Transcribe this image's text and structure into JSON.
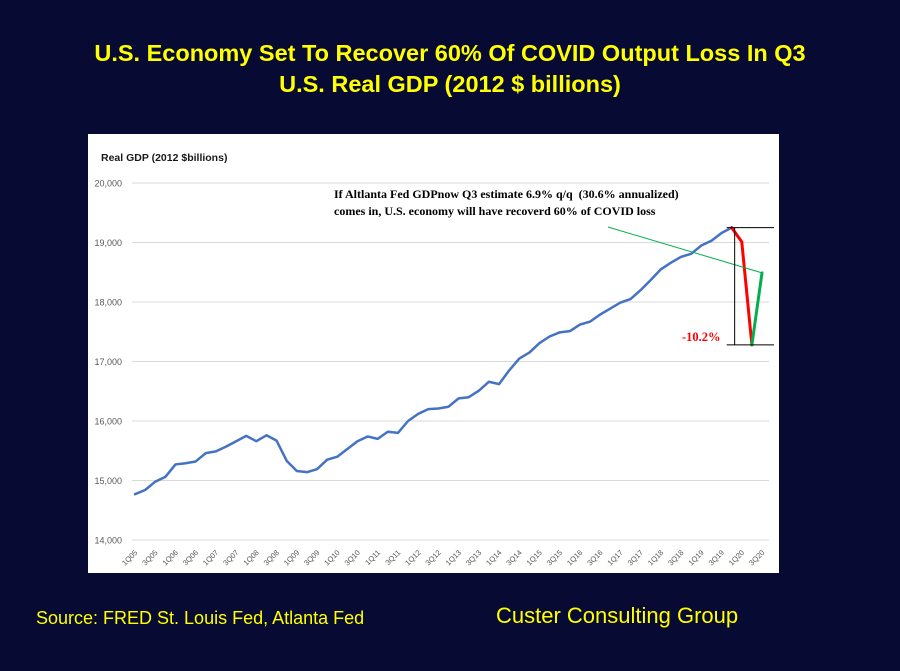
{
  "slide": {
    "title_line1": "U.S. Economy Set To Recover 60% Of COVID Output Loss In Q3",
    "title_line2": "U.S. Real GDP (2012 $ billions)",
    "source": "Source: FRED St. Louis Fed, Atlanta Fed",
    "brand": "Custer Consulting Group"
  },
  "chart_data": {
    "type": "line",
    "title": "Real GDP (2012 $billions)",
    "ylim": [
      14000,
      20000
    ],
    "yticks": [
      14000,
      15000,
      16000,
      17000,
      18000,
      19000,
      20000
    ],
    "ytick_labels": [
      "14,000",
      "15,000",
      "16,000",
      "17,000",
      "18,000",
      "19,000",
      "20,000"
    ],
    "xtick_labels": [
      "1Q05",
      "3Q05",
      "1Q06",
      "3Q06",
      "1Q07",
      "3Q07",
      "1Q08",
      "3Q08",
      "1Q09",
      "3Q09",
      "1Q10",
      "3Q10",
      "1Q11",
      "3Q11",
      "1Q12",
      "3Q12",
      "1Q13",
      "3Q13",
      "1Q14",
      "3Q14",
      "1Q15",
      "3Q15",
      "1Q16",
      "3Q16",
      "1Q17",
      "3Q17",
      "1Q18",
      "3Q18",
      "1Q19",
      "3Q19",
      "1Q20",
      "3Q20"
    ],
    "grid": true,
    "x": [
      "1Q05",
      "2Q05",
      "3Q05",
      "4Q05",
      "1Q06",
      "2Q06",
      "3Q06",
      "4Q06",
      "1Q07",
      "2Q07",
      "3Q07",
      "4Q07",
      "1Q08",
      "2Q08",
      "3Q08",
      "4Q08",
      "1Q09",
      "2Q09",
      "3Q09",
      "4Q09",
      "1Q10",
      "2Q10",
      "3Q10",
      "4Q10",
      "1Q11",
      "2Q11",
      "3Q11",
      "4Q11",
      "1Q12",
      "2Q12",
      "3Q12",
      "4Q12",
      "1Q13",
      "2Q13",
      "3Q13",
      "4Q13",
      "1Q14",
      "2Q14",
      "3Q14",
      "4Q14",
      "1Q15",
      "2Q15",
      "3Q15",
      "4Q15",
      "1Q16",
      "2Q16",
      "3Q16",
      "4Q16",
      "1Q17",
      "2Q17",
      "3Q17",
      "4Q17",
      "1Q18",
      "2Q18",
      "3Q18",
      "4Q18",
      "1Q19",
      "2Q19",
      "3Q19",
      "4Q19",
      "1Q20",
      "2Q20",
      "3Q20"
    ],
    "series": [
      {
        "name": "",
        "color": "#4472c4",
        "values": [
          14770,
          14840,
          14980,
          15060,
          15270,
          15290,
          15320,
          15460,
          15490,
          15570,
          15660,
          15750,
          15660,
          15760,
          15670,
          15330,
          15160,
          15140,
          15190,
          15350,
          15400,
          15530,
          15660,
          15740,
          15700,
          15820,
          15800,
          16000,
          16120,
          16200,
          16210,
          16240,
          16380,
          16400,
          16510,
          16660,
          16620,
          16850,
          17050,
          17150,
          17310,
          17420,
          17490,
          17510,
          17620,
          17670,
          17790,
          17890,
          17990,
          18050,
          18200,
          18370,
          18550,
          18660,
          18760,
          18810,
          18950,
          19030,
          19160,
          19250,
          null,
          null,
          null
        ]
      },
      {
        "name": "",
        "color": "#ff0000",
        "values": [
          null,
          null,
          null,
          null,
          null,
          null,
          null,
          null,
          null,
          null,
          null,
          null,
          null,
          null,
          null,
          null,
          null,
          null,
          null,
          null,
          null,
          null,
          null,
          null,
          null,
          null,
          null,
          null,
          null,
          null,
          null,
          null,
          null,
          null,
          null,
          null,
          null,
          null,
          null,
          null,
          null,
          null,
          null,
          null,
          null,
          null,
          null,
          null,
          null,
          null,
          null,
          null,
          null,
          null,
          null,
          null,
          null,
          null,
          null,
          19250,
          19010,
          17280,
          null
        ]
      },
      {
        "name": "",
        "color": "#00b050",
        "values": [
          null,
          null,
          null,
          null,
          null,
          null,
          null,
          null,
          null,
          null,
          null,
          null,
          null,
          null,
          null,
          null,
          null,
          null,
          null,
          null,
          null,
          null,
          null,
          null,
          null,
          null,
          null,
          null,
          null,
          null,
          null,
          null,
          null,
          null,
          null,
          null,
          null,
          null,
          null,
          null,
          null,
          null,
          null,
          null,
          null,
          null,
          null,
          null,
          null,
          null,
          null,
          null,
          null,
          null,
          null,
          null,
          null,
          null,
          null,
          null,
          null,
          17280,
          18490
        ]
      }
    ],
    "annotations": {
      "note_line1": "If Altlanta Fed GDPnow Q3 estimate 6.9% q/q  (30.6% annualized)",
      "note_line2": "comes in, U.S. economy will have recoverd 60% of COVID loss",
      "drop_label": "-10.2%",
      "drop_label_color": "#ff0000",
      "trend_line_color": "#00b050",
      "trend_line_from": [
        "1Q19",
        19260
      ],
      "trend_line_to": [
        "3Q20",
        18490
      ],
      "peak_value": 19250,
      "trough_value": 17280
    }
  }
}
